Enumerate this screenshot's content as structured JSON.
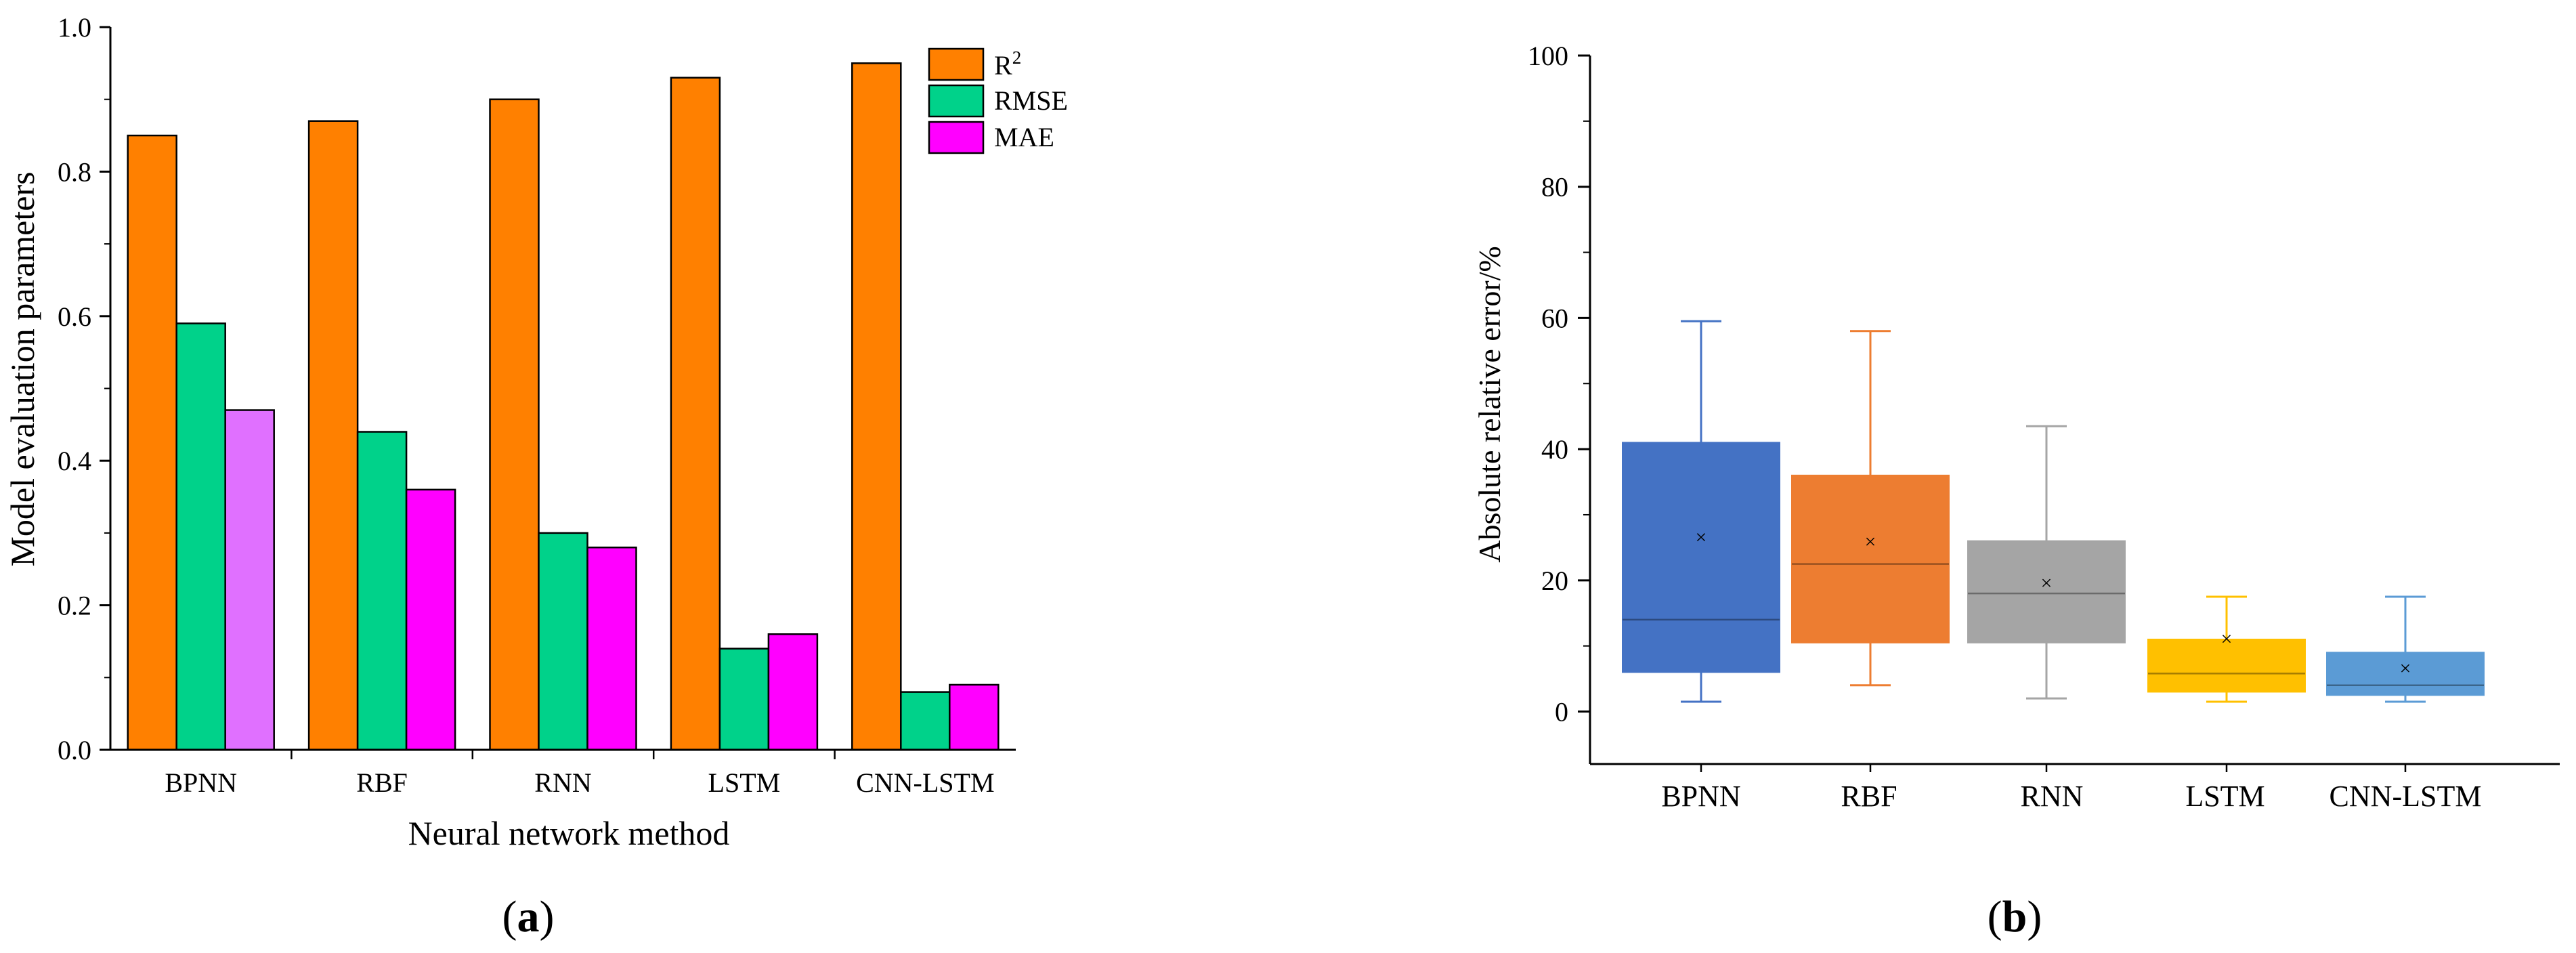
{
  "colors": {
    "r2": "#FF8000",
    "rmse": "#00D28A",
    "mae": "#FF00FF",
    "mae_bpnn": "#E070FF",
    "box_bpnn": "#4472C4",
    "box_rbf": "#ED7D31",
    "box_rnn": "#A5A5A5",
    "box_lstm": "#FFC000",
    "box_cnnlstm": "#5B9BD5"
  },
  "chart_data": [
    {
      "panel_label": "a",
      "type": "bar",
      "title": "",
      "xlabel": "Neural network method",
      "ylabel": "Model evaluation parameters",
      "ylim": [
        0.0,
        1.0
      ],
      "yticks": [
        "0.0",
        "0.2",
        "0.4",
        "0.6",
        "0.8",
        "1.0"
      ],
      "categories": [
        "BPNN",
        "RBF",
        "RNN",
        "LSTM",
        "CNN-LSTM"
      ],
      "legend": {
        "placement": "top-right",
        "r2_base": "R",
        "r2_sup": "2"
      },
      "series": [
        {
          "name": "R2",
          "values": [
            0.85,
            0.87,
            0.9,
            0.93,
            0.95
          ]
        },
        {
          "name": "RMSE",
          "values": [
            0.59,
            0.44,
            0.3,
            0.14,
            0.08
          ]
        },
        {
          "name": "MAE",
          "values": [
            0.47,
            0.36,
            0.28,
            0.16,
            0.09
          ]
        }
      ]
    },
    {
      "panel_label": "b",
      "type": "box",
      "title": "",
      "xlabel": "",
      "ylabel": "Absolute relative error/%",
      "ylim": [
        -8,
        100
      ],
      "yticks": [
        "0",
        "20",
        "40",
        "60",
        "80",
        "100"
      ],
      "categories": [
        "BPNN",
        "RBF",
        "RNN",
        "LSTM",
        "CNN-LSTM"
      ],
      "boxes": [
        {
          "name": "BPNN",
          "min": 1.5,
          "q1": 6.0,
          "median": 14.0,
          "q3": 41.0,
          "max": 59.5,
          "mean": 26.5
        },
        {
          "name": "RBF",
          "min": 4.0,
          "q1": 10.5,
          "median": 22.5,
          "q3": 36.0,
          "max": 58.0,
          "mean": 25.8
        },
        {
          "name": "RNN",
          "min": 2.0,
          "q1": 10.5,
          "median": 18.0,
          "q3": 26.0,
          "max": 43.5,
          "mean": 19.5
        },
        {
          "name": "LSTM",
          "min": 1.5,
          "q1": 3.0,
          "median": 5.8,
          "q3": 11.0,
          "max": 17.5,
          "mean": 11.0
        },
        {
          "name": "CNN-LSTM",
          "min": 1.5,
          "q1": 2.5,
          "median": 4.0,
          "q3": 9.0,
          "max": 17.5,
          "mean": 6.5
        }
      ]
    }
  ]
}
